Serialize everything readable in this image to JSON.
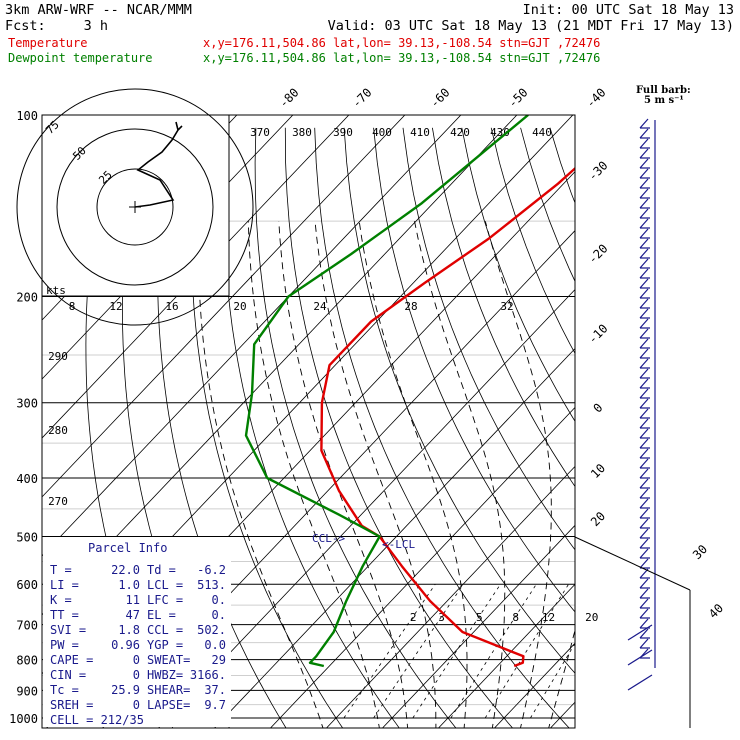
{
  "header": {
    "model": "3km ARW-WRF -- NCAR/MMM",
    "init": "Init: 00 UTC Sat 18 May 13",
    "fcst_label": "Fcst:",
    "fcst_value": "3 h",
    "valid": "Valid: 03 UTC Sat 18 May 13 (21 MDT Fri 17 May 13)",
    "line1_label": "Temperature",
    "line1_info": "x,y=176.11,504.86   lat,lon= 39.13,-108.54   stn=GJT ,72476",
    "line2_label": "Dewpoint temperature",
    "line2_info": "x,y=176.11,504.86   lat,lon= 39.13,-108.54   stn=GJT ,72476",
    "full_barb_title": "Full barb:",
    "full_barb_value": "5 m s⁻¹"
  },
  "colors": {
    "temperature": "#e00000",
    "dewpoint": "#008000",
    "labels_red": "#e00000",
    "labels_green": "#008000",
    "parcel": "#1a1a8c",
    "barbs": "#1a1a8c",
    "lines": "#000000"
  },
  "chart_data": {
    "type": "line",
    "title": "",
    "xlabel": "",
    "ylabel": "",
    "y_scale": "log",
    "y_reversed": true,
    "ylim": [
      1000,
      100
    ],
    "pressure_ticks": [
      "100",
      "200",
      "300",
      "400",
      "500",
      "600",
      "700",
      "800",
      "900",
      "1000"
    ],
    "isotherm_labels": [
      "-80",
      "-70",
      "-60",
      "-50",
      "-40",
      "-30",
      "-20",
      "-10",
      "0",
      "10",
      "20",
      "30",
      "40"
    ],
    "theta_labels": [
      "370",
      "380",
      "390",
      "400",
      "410",
      "420",
      "430",
      "440"
    ],
    "theta_labels_lower": [
      "290",
      "280",
      "270"
    ],
    "mixing_ratio_labels": [
      "2",
      "3",
      "5",
      "8",
      "12",
      "20"
    ],
    "mixing_ratio_labels_upper": [
      "8",
      "12",
      "16",
      "20",
      "24",
      "28",
      "32"
    ],
    "hodograph": {
      "rings": [
        "25",
        "50",
        "75"
      ],
      "unit": "kts"
    },
    "series": [
      {
        "name": "Temperature",
        "pressure": [
          100,
          130,
          160,
          190,
          220,
          260,
          300,
          360,
          420,
          480,
          500,
          560,
          640,
          720,
          790,
          810,
          820
        ],
        "values": [
          -59,
          -61,
          -64,
          -68,
          -71,
          -71,
          -66,
          -58,
          -48,
          -38,
          -33,
          -24,
          -13,
          -2,
          13,
          14,
          13
        ]
      },
      {
        "name": "Dewpoint temperature",
        "pressure": [
          100,
          140,
          170,
          200,
          240,
          290,
          340,
          400,
          460,
          500,
          560,
          640,
          720,
          790,
          810,
          820
        ],
        "values": [
          -78,
          -82,
          -86,
          -90,
          -88,
          -80,
          -74,
          -63,
          -44,
          -33,
          -31,
          -28,
          -25,
          -24,
          -24,
          -21
        ]
      }
    ],
    "annotations": [
      "CCL->",
      "<-LCL"
    ]
  },
  "parcel": {
    "title": "Parcel Info",
    "rows": [
      [
        "T   =",
        "22.0",
        "Td =",
        "-6.2"
      ],
      [
        "LI  =",
        "1.0",
        "LCL =",
        "513."
      ],
      [
        "K   =",
        "11",
        "LFC =",
        "0."
      ],
      [
        "TT  =",
        "47",
        "EL  =",
        "0."
      ],
      [
        "SVI =",
        "1.8",
        "CCL =",
        "502."
      ],
      [
        "PW  =",
        "0.96",
        "YGP =",
        "0.0"
      ],
      [
        "CAPE =",
        "0",
        "SWEAT=",
        "29"
      ],
      [
        "CIN =",
        "0",
        "HWBZ=",
        "3166."
      ],
      [
        "Tc  =",
        "25.9",
        "SHEAR=",
        "37."
      ],
      [
        "SREH =",
        "0",
        "LAPSE=",
        "9.7"
      ]
    ],
    "cell": "CELL = 212/35"
  },
  "barb_panel": {
    "labels": [
      "30",
      "40"
    ]
  }
}
